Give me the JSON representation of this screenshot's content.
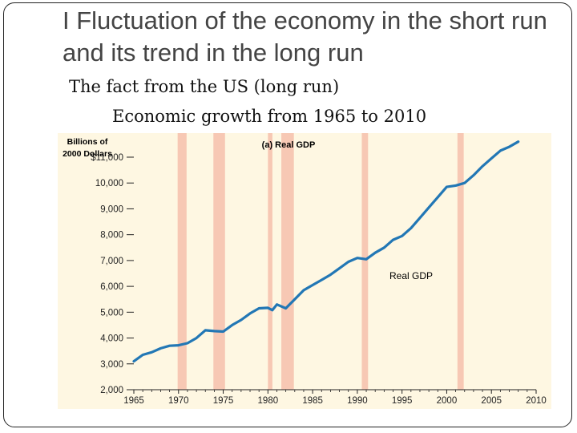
{
  "slide": {
    "title": "I Fluctuation of the economy in the short run and its trend in the long run",
    "subtitle_line1": "The fact from the US (long run)",
    "subtitle_line2": "Economic growth from 1965 to 2010"
  },
  "colors": {
    "background": "#fef7e2",
    "recession": "#f7c8b4",
    "series": "#2277b5",
    "text": "#222222"
  },
  "chart_data": {
    "type": "line",
    "title": "(a) Real GDP",
    "ylabel": "Billions of 2000 Dollars",
    "ylabel_lines": [
      "Billions of",
      "2000 Dollars"
    ],
    "xlabel": "",
    "xlim": [
      1965,
      2010
    ],
    "ylim": [
      2000,
      11000
    ],
    "x_ticks": [
      1965,
      1970,
      1975,
      1980,
      1985,
      1990,
      1995,
      2000,
      2005,
      2010
    ],
    "y_ticks": [
      2000,
      3000,
      4000,
      5000,
      6000,
      7000,
      8000,
      9000,
      10000,
      11000
    ],
    "y_tick_labels": [
      "2,000",
      "3,000",
      "4,000",
      "5,000",
      "6,000",
      "7,000",
      "8,000",
      "9,000",
      "10,000",
      "$11,000"
    ],
    "series_label": "Real GDP",
    "recessions": [
      [
        1969.9,
        1970.9
      ],
      [
        1973.9,
        1975.2
      ],
      [
        1980.0,
        1980.5
      ],
      [
        1981.5,
        1982.9
      ],
      [
        1990.5,
        1991.2
      ],
      [
        2001.2,
        2001.9
      ]
    ],
    "series": [
      {
        "name": "Real GDP",
        "x": [
          1965,
          1966,
          1967,
          1968,
          1969,
          1970,
          1971,
          1972,
          1973,
          1974,
          1975,
          1976,
          1977,
          1978,
          1979,
          1980,
          1980.5,
          1981,
          1982,
          1983,
          1984,
          1985,
          1986,
          1987,
          1988,
          1989,
          1990,
          1991,
          1992,
          1993,
          1994,
          1995,
          1996,
          1997,
          1998,
          1999,
          2000,
          2001,
          2002,
          2003,
          2004,
          2005,
          2006,
          2007,
          2008
        ],
        "values": [
          3100,
          3350,
          3450,
          3600,
          3700,
          3720,
          3800,
          4000,
          4300,
          4270,
          4250,
          4500,
          4700,
          4950,
          5150,
          5170,
          5080,
          5300,
          5150,
          5500,
          5850,
          6050,
          6250,
          6450,
          6700,
          6950,
          7100,
          7050,
          7300,
          7500,
          7800,
          7950,
          8250,
          8650,
          9050,
          9450,
          9850,
          9900,
          10000,
          10300,
          10650,
          10950,
          11250,
          11400,
          11600
        ]
      }
    ]
  }
}
